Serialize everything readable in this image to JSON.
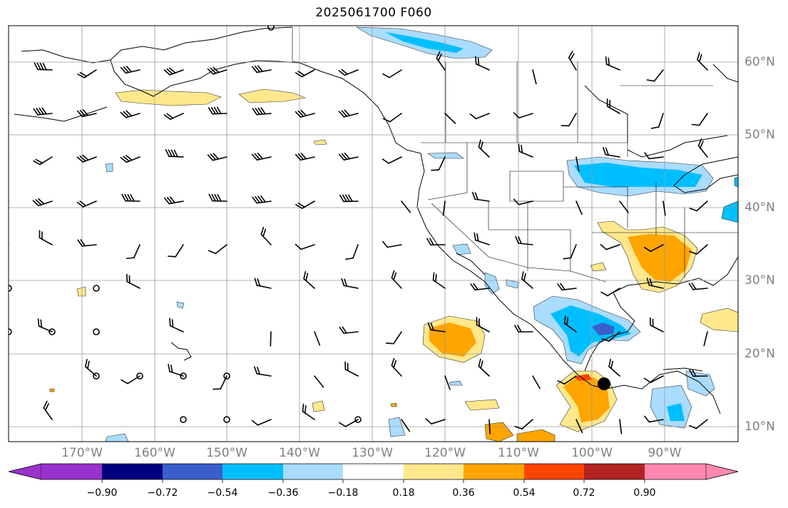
{
  "title": "2025061700 F060",
  "axes": {
    "lon_labels": [
      "170°W",
      "160°W",
      "150°W",
      "140°W",
      "130°W",
      "120°W",
      "110°W",
      "100°W",
      "90°W"
    ],
    "lat_labels": [
      "60°N",
      "50°N",
      "40°N",
      "30°N",
      "20°N",
      "10°N"
    ]
  },
  "colorbar": {
    "colors": [
      "#9932cc",
      "#000080",
      "#3a5fcd",
      "#00bfff",
      "#aadcff",
      "#ffffff",
      "#ffe88c",
      "#ffa500",
      "#ff4500",
      "#b22222",
      "#ff88b0"
    ],
    "tick_labels": [
      "−0.90",
      "−0.72",
      "−0.54",
      "−0.36",
      "−0.18",
      "0.18",
      "0.36",
      "0.54",
      "0.72",
      "0.90"
    ],
    "extend": "both"
  },
  "marker": {
    "lat": 16,
    "lon": -98.5,
    "color": "#000000"
  }
}
